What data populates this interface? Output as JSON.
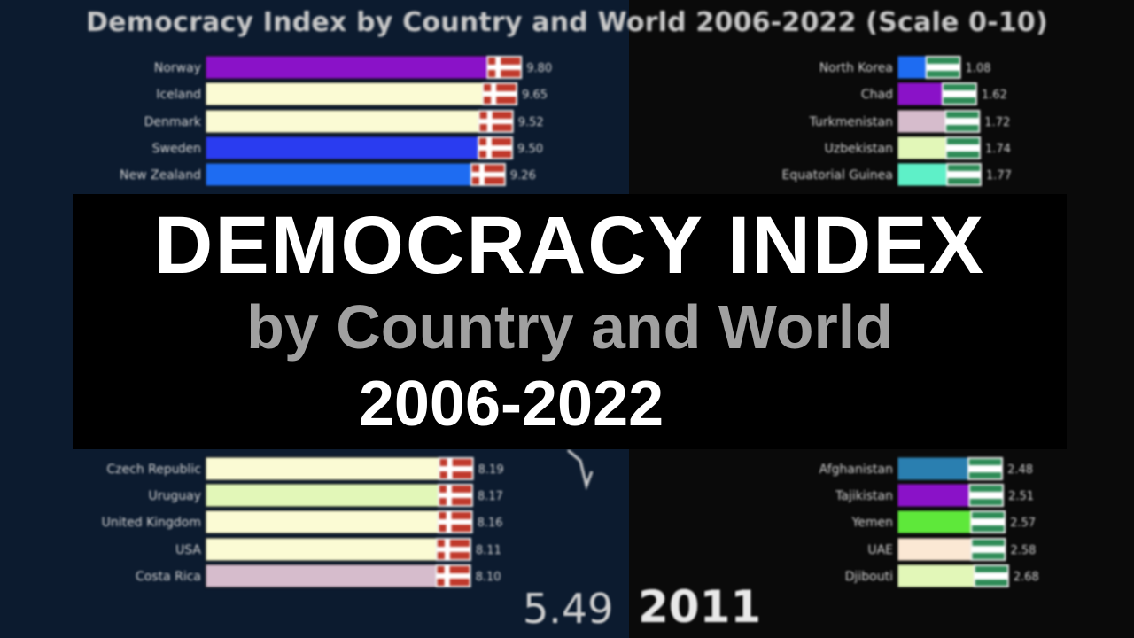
{
  "chart_data": {
    "type": "bar",
    "title": "Democracy Index by Country and World 2006-2022 (Scale 0-10)",
    "xlim": [
      0,
      10
    ],
    "orientation": "horizontal",
    "panels": [
      {
        "name": "top",
        "bars": [
          {
            "country": "Norway",
            "value": 9.8,
            "value_label": "9.80",
            "color": "#8a12c8"
          },
          {
            "country": "Iceland",
            "value": 9.65,
            "value_label": "9.65",
            "color": "#fbfbd4"
          },
          {
            "country": "Denmark",
            "value": 9.52,
            "value_label": "9.52",
            "color": "#fbfbd4"
          },
          {
            "country": "Sweden",
            "value": 9.5,
            "value_label": "9.50",
            "color": "#2a3cf0"
          },
          {
            "country": "New Zealand",
            "value": 9.26,
            "value_label": "9.26",
            "color": "#1e6cf2"
          },
          {
            "country": "Czech Republic",
            "value": 8.19,
            "value_label": "8.19",
            "color": "#fbfbd4"
          },
          {
            "country": "Uruguay",
            "value": 8.17,
            "value_label": "8.17",
            "color": "#e2f7b8"
          },
          {
            "country": "United Kingdom",
            "value": 8.16,
            "value_label": "8.16",
            "color": "#fbfbd4"
          },
          {
            "country": "USA",
            "value": 8.11,
            "value_label": "8.11",
            "color": "#fbfbd4"
          },
          {
            "country": "Costa Rica",
            "value": 8.1,
            "value_label": "8.10",
            "color": "#d6bccc"
          }
        ]
      },
      {
        "name": "bottom",
        "bars": [
          {
            "country": "North Korea",
            "value": 1.08,
            "value_label": "1.08",
            "color": "#1e6cf2"
          },
          {
            "country": "Chad",
            "value": 1.62,
            "value_label": "1.62",
            "color": "#8a12c8"
          },
          {
            "country": "Turkmenistan",
            "value": 1.72,
            "value_label": "1.72",
            "color": "#d6bccc"
          },
          {
            "country": "Uzbekistan",
            "value": 1.74,
            "value_label": "1.74",
            "color": "#e2f7b8"
          },
          {
            "country": "Equatorial Guinea",
            "value": 1.77,
            "value_label": "1.77",
            "color": "#5ef0c8"
          },
          {
            "country": "Afghanistan",
            "value": 2.48,
            "value_label": "2.48",
            "color": "#2a7fb0"
          },
          {
            "country": "Tajikistan",
            "value": 2.51,
            "value_label": "2.51",
            "color": "#8a12c8"
          },
          {
            "country": "Yemen",
            "value": 2.57,
            "value_label": "2.57",
            "color": "#5ee83a"
          },
          {
            "country": "UAE",
            "value": 2.58,
            "value_label": "2.58",
            "color": "#fbe8d4"
          },
          {
            "country": "Djibouti",
            "value": 2.68,
            "value_label": "2.68",
            "color": "#e2f7b8"
          }
        ]
      }
    ],
    "world_value": "5.49",
    "year": "2011"
  },
  "overlay": {
    "title": "DEMOCRACY INDEX",
    "subtitle": "by Country and World",
    "years": "2006-2022"
  },
  "colors": {
    "left_background": "#0c1b2f",
    "right_background": "#0a0a0a",
    "overlay_background": "#000000"
  }
}
